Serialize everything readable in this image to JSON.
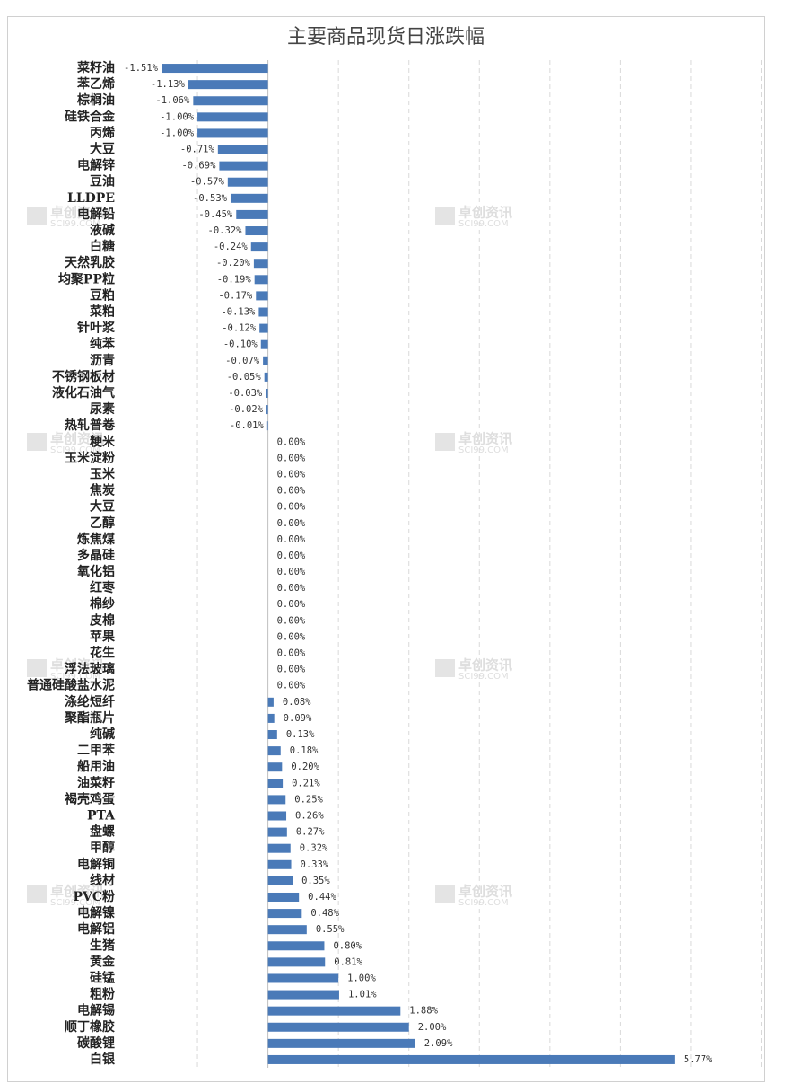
{
  "chart_data": {
    "type": "barh",
    "title": "主要商品现货日涨跌幅",
    "categories": [
      "菜籽油",
      "苯乙烯",
      "棕榈油",
      "硅铁合金",
      "丙烯",
      "大豆",
      "电解锌",
      "豆油",
      "LLDPE",
      "电解铅",
      "液碱",
      "白糖",
      "天然乳胶",
      "均聚PP粒",
      "豆粕",
      "菜粕",
      "针叶浆",
      "纯苯",
      "沥青",
      "不锈钢板材",
      "液化石油气",
      "尿素",
      "热轧普卷",
      "粳米",
      "玉米淀粉",
      "玉米",
      "焦炭",
      "大豆",
      "乙醇",
      "炼焦煤",
      "多晶硅",
      "氧化铝",
      "红枣",
      "棉纱",
      "皮棉",
      "苹果",
      "花生",
      "浮法玻璃",
      "普通硅酸盐水泥",
      "涤纶短纤",
      "聚酯瓶片",
      "纯碱",
      "二甲苯",
      "船用油",
      "油菜籽",
      "褐壳鸡蛋",
      "PTA",
      "盘螺",
      "甲醇",
      "电解铜",
      "线材",
      "PVC粉",
      "电解镍",
      "电解铝",
      "生猪",
      "黄金",
      "硅锰",
      "粗粉",
      "电解锡",
      "顺丁橡胶",
      "碳酸锂",
      "白银"
    ],
    "values": [
      -1.51,
      -1.13,
      -1.06,
      -1.0,
      -1.0,
      -0.71,
      -0.69,
      -0.57,
      -0.53,
      -0.45,
      -0.32,
      -0.24,
      -0.2,
      -0.19,
      -0.17,
      -0.13,
      -0.12,
      -0.1,
      -0.07,
      -0.05,
      -0.03,
      -0.02,
      -0.01,
      0,
      0,
      0,
      0,
      0,
      0,
      0,
      0,
      0,
      0,
      0,
      0,
      0,
      0,
      0,
      0,
      0.08,
      0.09,
      0.13,
      0.18,
      0.2,
      0.21,
      0.25,
      0.26,
      0.27,
      0.32,
      0.33,
      0.35,
      0.44,
      0.48,
      0.55,
      0.8,
      0.81,
      1.0,
      1.01,
      1.88,
      2.0,
      2.09,
      5.77
    ],
    "value_labels": [
      "-1.51%",
      "-1.13%",
      "-1.06%",
      "-1.00%",
      "-1.00%",
      "-0.71%",
      "-0.69%",
      "-0.57%",
      "-0.53%",
      "-0.45%",
      "-0.32%",
      "-0.24%",
      "-0.20%",
      "-0.19%",
      "-0.17%",
      "-0.13%",
      "-0.12%",
      "-0.10%",
      "-0.07%",
      "-0.05%",
      "-0.03%",
      "-0.02%",
      "-0.01%",
      "0.00%",
      "0.00%",
      "0.00%",
      "0.00%",
      "0.00%",
      "0.00%",
      "0.00%",
      "0.00%",
      "0.00%",
      "0.00%",
      "0.00%",
      "0.00%",
      "0.00%",
      "0.00%",
      "0.00%",
      "0.00%",
      "0.08%",
      "0.09%",
      "0.13%",
      "0.18%",
      "0.20%",
      "0.21%",
      "0.25%",
      "0.26%",
      "0.27%",
      "0.32%",
      "0.33%",
      "0.35%",
      "0.44%",
      "0.48%",
      "0.55%",
      "0.80%",
      "0.81%",
      "1.00%",
      "1.01%",
      "1.88%",
      "2.00%",
      "2.09%",
      "5.77%"
    ],
    "color": "#4a7ab8",
    "xlim": [
      -2,
      7
    ],
    "xticks": [
      -2,
      -1,
      0,
      1,
      2,
      3,
      4,
      5,
      6,
      7
    ],
    "grid": true,
    "watermark": {
      "name": "卓创资讯",
      "site": "SCI99.COM"
    }
  }
}
